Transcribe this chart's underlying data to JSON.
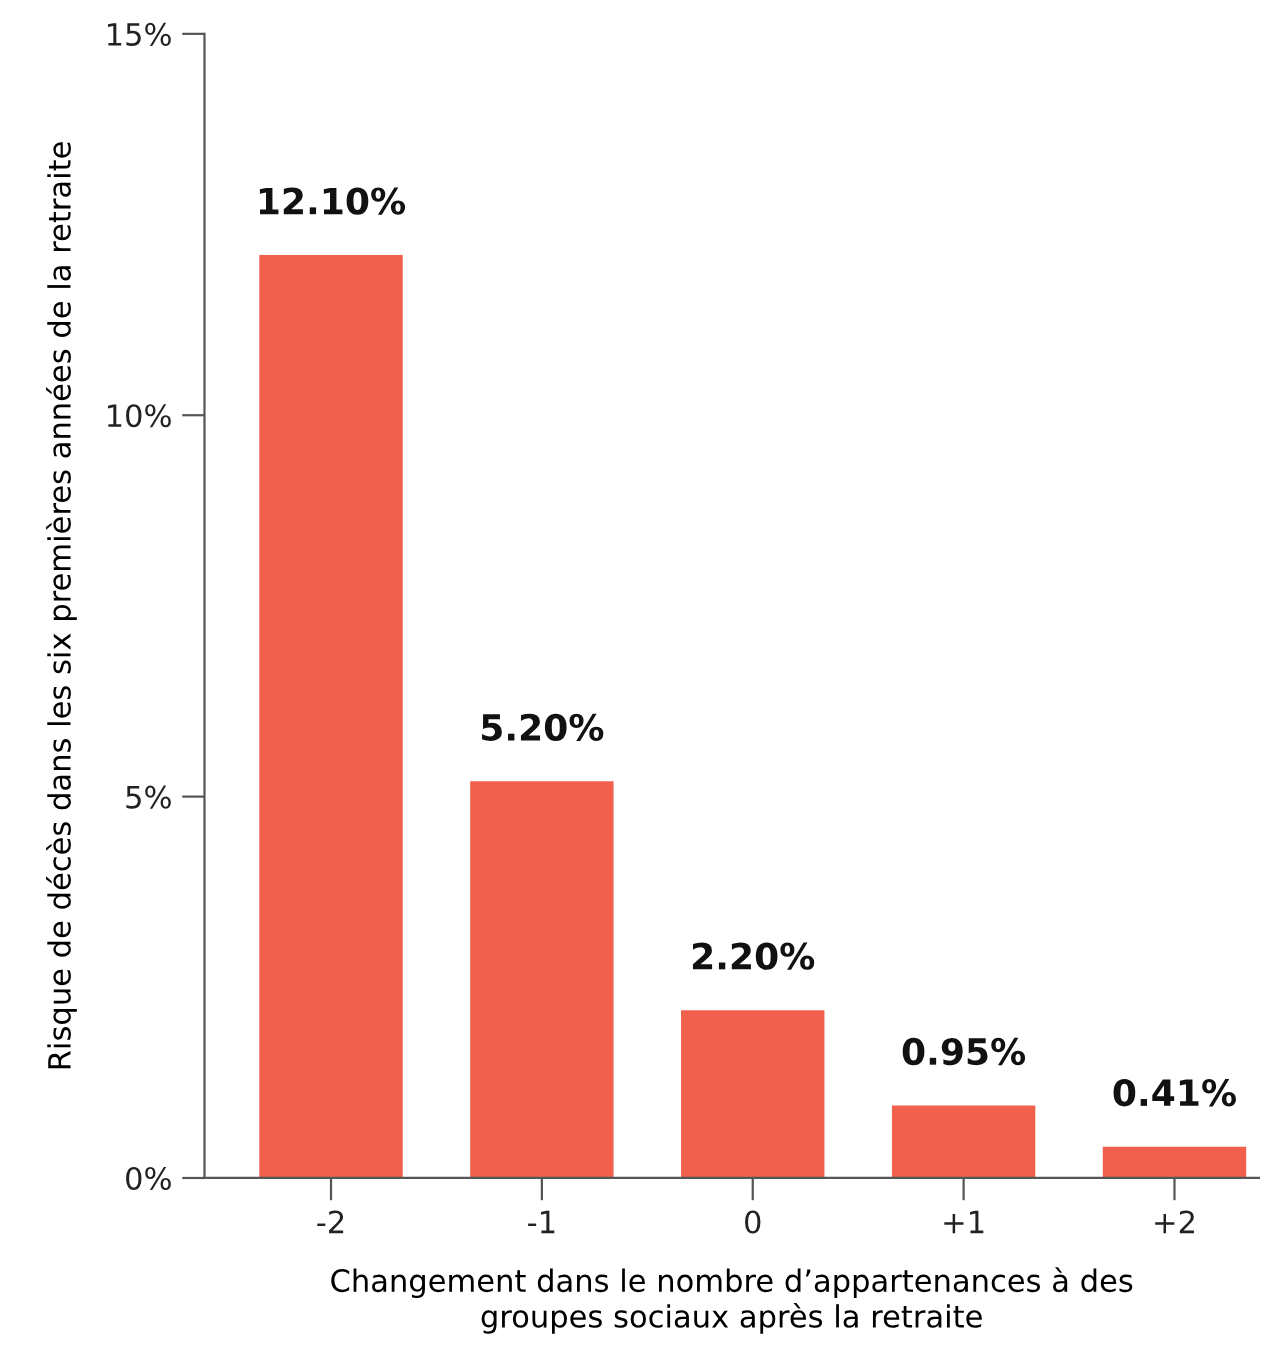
{
  "chart_data": {
    "type": "bar",
    "categories": [
      "-2",
      "-1",
      "0",
      "+1",
      "+2"
    ],
    "values": [
      12.1,
      5.2,
      2.2,
      0.95,
      0.41
    ],
    "value_labels": [
      "12.10%",
      "5.20%",
      "2.20%",
      "0.95%",
      "0.41%"
    ],
    "color": "#f0604d",
    "ylim": [
      0,
      15
    ],
    "yticks": [
      {
        "value": 0,
        "label": "0%"
      },
      {
        "value": 5,
        "label": "5%"
      },
      {
        "value": 10,
        "label": "10%"
      },
      {
        "value": 15,
        "label": "15%"
      }
    ],
    "xlabel": "Changement dans le nombre d’appartenances à des\ngroupes sociaux après la retraite",
    "ylabel": "Risque de décès dans les six premières années de la retraite",
    "grid": false
  }
}
